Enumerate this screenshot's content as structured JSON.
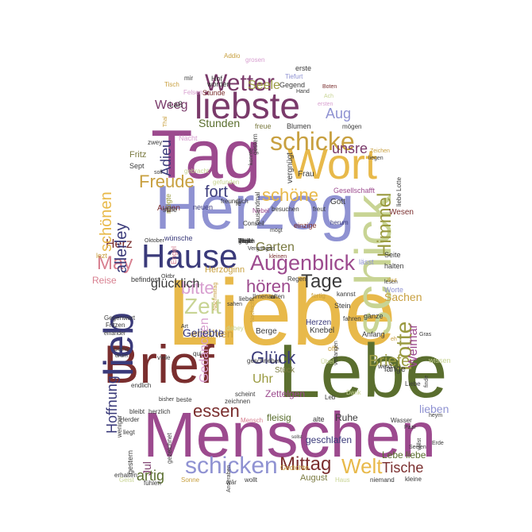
{
  "words": [
    {
      "text": "Liebe",
      "color": "#e8b94a",
      "orientation": "horizontal"
    },
    {
      "text": "Menschen",
      "color": "#9c4a8e",
      "orientation": "horizontal"
    },
    {
      "text": "Lebe",
      "color": "#5a6e2e",
      "orientation": "horizontal"
    },
    {
      "text": "Brief",
      "color": "#7a2e2e",
      "orientation": "horizontal"
    },
    {
      "text": "Herzog",
      "color": "#8f92d2",
      "orientation": "horizontal"
    },
    {
      "text": "Tag",
      "color": "#9c4a8e",
      "orientation": "horizontal"
    },
    {
      "text": "Wort",
      "color": "#e8b94a",
      "orientation": "horizontal"
    },
    {
      "text": "liebste",
      "color": "#7a3a6a",
      "orientation": "horizontal"
    },
    {
      "text": "Hause",
      "color": "#3a3a7a",
      "orientation": "horizontal"
    },
    {
      "text": "schick",
      "color": "#c8d494",
      "orientation": "vertical"
    },
    {
      "text": "lieb",
      "color": "#3a3a7a",
      "orientation": "vertical"
    },
    {
      "text": "schicke",
      "color": "#c8a040",
      "orientation": "horizontal"
    },
    {
      "text": "Wetter",
      "color": "#7a3a6a",
      "orientation": "horizontal"
    },
    {
      "text": "Augenblick",
      "color": "#9c4a8e",
      "orientation": "horizontal"
    },
    {
      "text": "schicken",
      "color": "#8f92d2",
      "orientation": "horizontal"
    },
    {
      "text": "Zeit",
      "color": "#c8d494",
      "orientation": "horizontal"
    },
    {
      "text": "Tage",
      "color": "#3a3a3a",
      "orientation": "horizontal"
    },
    {
      "text": "Lotte",
      "color": "#9a9a40",
      "orientation": "vertical"
    },
    {
      "text": "Welt",
      "color": "#e8b94a",
      "orientation": "horizontal"
    },
    {
      "text": "Glück",
      "color": "#3a3a7a",
      "orientation": "horizontal"
    },
    {
      "text": "essen",
      "color": "#7a2e2e",
      "orientation": "horizontal"
    },
    {
      "text": "Mittag",
      "color": "#7a2e2e",
      "orientation": "horizontal"
    },
    {
      "text": "bitte",
      "color": "#d8a0d0",
      "orientation": "horizontal"
    },
    {
      "text": "hören",
      "color": "#9c4a8e",
      "orientation": "horizontal"
    },
    {
      "text": "May",
      "color": "#d88090",
      "orientation": "horizontal"
    },
    {
      "text": "Freude",
      "color": "#c8a040",
      "orientation": "horizontal"
    },
    {
      "text": "schöne",
      "color": "#e8b94a",
      "orientation": "horizontal"
    },
    {
      "text": "fort",
      "color": "#3a3a7a",
      "orientation": "horizontal"
    },
    {
      "text": "Himmel",
      "color": "#9a9a40",
      "orientation": "vertical"
    },
    {
      "text": "unsre",
      "color": "#7a3a6a",
      "orientation": "horizontal"
    },
    {
      "text": "Aug",
      "color": "#8f92d2",
      "orientation": "horizontal"
    },
    {
      "text": "Seele",
      "color": "#9a9a40",
      "orientation": "horizontal"
    },
    {
      "text": "Weeg",
      "color": "#7a3a6a",
      "orientation": "horizontal"
    },
    {
      "text": "Stunden",
      "color": "#5a6e2e",
      "orientation": "horizontal"
    },
    {
      "text": "Adieu",
      "color": "#3a3a7a",
      "orientation": "vertical"
    },
    {
      "text": "Garten",
      "color": "#7a7a40",
      "orientation": "horizontal"
    },
    {
      "text": "Herz",
      "color": "#7a2e2e",
      "orientation": "horizontal"
    },
    {
      "text": "allerley",
      "color": "#3a3a7a",
      "orientation": "vertical"
    },
    {
      "text": "schönen",
      "color": "#e8b94a",
      "orientation": "vertical"
    },
    {
      "text": "Briefe",
      "color": "#9a9a40",
      "orientation": "horizontal"
    },
    {
      "text": "Weimar",
      "color": "#9c4a8e",
      "orientation": "vertical"
    },
    {
      "text": "Hoffnung",
      "color": "#3a3a7a",
      "orientation": "vertical"
    },
    {
      "text": "glücklich",
      "color": "#3a3a3a",
      "orientation": "horizontal"
    },
    {
      "text": "Uhr",
      "color": "#9a9a40",
      "orientation": "horizontal"
    },
    {
      "text": "Gedancken",
      "color": "#d8a0d0",
      "orientation": "vertical"
    },
    {
      "text": "artig",
      "color": "#5a6e2e",
      "orientation": "horizontal"
    },
    {
      "text": "Tische",
      "color": "#7a2e2e",
      "orientation": "horizontal"
    },
    {
      "text": "lieben",
      "color": "#8f92d2",
      "orientation": "horizontal"
    },
    {
      "text": "Jul",
      "color": "#7a3a6a",
      "orientation": "vertical"
    },
    {
      "text": "erzählen",
      "color": "#c8a040",
      "orientation": "horizontal"
    },
    {
      "text": "Sachen",
      "color": "#c8a040",
      "orientation": "horizontal"
    },
    {
      "text": "Reise",
      "color": "#d88090",
      "orientation": "horizontal"
    },
    {
      "text": "Herzoginn",
      "color": "#c8a040",
      "orientation": "horizontal"
    },
    {
      "text": "Geliebte",
      "color": "#3a3a7a",
      "orientation": "horizontal"
    },
    {
      "text": "Zettelgen",
      "color": "#9c4a8e",
      "orientation": "horizontal"
    },
    {
      "text": "fleisig",
      "color": "#5a6e2e",
      "orientation": "horizontal"
    },
    {
      "text": "geschlafen",
      "color": "#3a3a7a",
      "orientation": "horizontal"
    },
    {
      "text": "Ruhe",
      "color": "#3a3a3a",
      "orientation": "horizontal"
    },
    {
      "text": "Lebe liebe",
      "color": "#5a6e2e",
      "orientation": "horizontal"
    },
    {
      "text": "lange",
      "color": "#3a3a3a",
      "orientation": "horizontal"
    },
    {
      "text": "August",
      "color": "#7a7a40",
      "orientation": "horizontal"
    },
    {
      "text": "Herzen",
      "color": "#3a3a7a",
      "orientation": "horizontal"
    },
    {
      "text": "Knebel",
      "color": "#3a3a3a",
      "orientation": "horizontal"
    },
    {
      "text": "Berge",
      "color": "#3a3a3a",
      "orientation": "horizontal"
    },
    {
      "text": "Stück",
      "color": "#7a7a40",
      "orientation": "horizontal"
    },
    {
      "text": "Augen",
      "color": "#7a2e2e",
      "orientation": "horizontal"
    },
    {
      "text": "Fritz",
      "color": "#7a7a40",
      "orientation": "horizontal"
    },
    {
      "text": "Sept",
      "color": "#3a3a3a",
      "orientation": "horizontal"
    },
    {
      "text": "Nacht",
      "color": "#d8a0d0",
      "orientation": "horizontal"
    },
    {
      "text": "vergnügt",
      "color": "#3a3a3a",
      "orientation": "vertical"
    },
    {
      "text": "Gesellschafft",
      "color": "#9c4a8e",
      "orientation": "horizontal"
    },
    {
      "text": "einzige",
      "color": "#7a2e2e",
      "orientation": "horizontal"
    },
    {
      "text": "Gott",
      "color": "#3a3a3a",
      "orientation": "horizontal"
    },
    {
      "text": "freue",
      "color": "#7a7a40",
      "orientation": "horizontal"
    },
    {
      "text": "Blumen",
      "color": "#3a3a3a",
      "orientation": "horizontal"
    },
    {
      "text": "Laß",
      "color": "#3a3a3a",
      "orientation": "horizontal"
    },
    {
      "text": "Stunde",
      "color": "#7a2e2e",
      "orientation": "horizontal"
    },
    {
      "text": "Gegend",
      "color": "#3a3a3a",
      "orientation": "horizontal"
    },
    {
      "text": "erste",
      "color": "#3a3a3a",
      "orientation": "horizontal"
    },
    {
      "text": "Hof",
      "color": "#3a3a3a",
      "orientation": "horizontal"
    },
    {
      "text": "Tisch",
      "color": "#c8a040",
      "orientation": "horizontal"
    },
    {
      "text": "worden",
      "color": "#3a3a3a",
      "orientation": "horizontal"
    },
    {
      "text": "Addio",
      "color": "#c8a040",
      "orientation": "horizontal"
    },
    {
      "text": "grosen",
      "color": "#d8a0d0",
      "orientation": "horizontal"
    },
    {
      "text": "Tiefurt",
      "color": "#8f92d2",
      "orientation": "horizontal"
    },
    {
      "text": "mir",
      "color": "#3a3a3a",
      "orientation": "horizontal"
    },
    {
      "text": "Thal",
      "color": "#c8a040",
      "orientation": "vertical"
    },
    {
      "text": "Felsen",
      "color": "#d8a0d0",
      "orientation": "horizontal"
    },
    {
      "text": "Ach",
      "color": "#c8d494",
      "orientation": "horizontal"
    },
    {
      "text": "Boten",
      "color": "#7a2e2e",
      "orientation": "horizontal"
    },
    {
      "text": "ersten",
      "color": "#d8a0d0",
      "orientation": "horizontal"
    },
    {
      "text": "Hand",
      "color": "#3a3a3a",
      "orientation": "horizontal"
    },
    {
      "text": "mögen",
      "color": "#3a3a3a",
      "orientation": "horizontal"
    },
    {
      "text": "Zeichen",
      "color": "#c8a040",
      "orientation": "horizontal"
    },
    {
      "text": "liegen",
      "color": "#3a3a3a",
      "orientation": "horizontal"
    },
    {
      "text": "gefunden",
      "color": "#c8d494",
      "orientation": "horizontal"
    },
    {
      "text": "Frau",
      "color": "#3a3a3a",
      "orientation": "horizontal"
    },
    {
      "text": "mögte",
      "color": "#9a9a40",
      "orientation": "vertical"
    },
    {
      "text": "stille",
      "color": "#3a3a3a",
      "orientation": "horizontal"
    },
    {
      "text": "neuen",
      "color": "#3a3a7a",
      "orientation": "horizontal"
    },
    {
      "text": "le",
      "color": "#3a3a3a",
      "orientation": "horizontal"
    },
    {
      "text": "Nebel",
      "color": "#9c4a8e",
      "orientation": "horizontal"
    },
    {
      "text": "besuchen",
      "color": "#3a3a3a",
      "orientation": "horizontal"
    },
    {
      "text": "freut",
      "color": "#3a3a3a",
      "orientation": "horizontal"
    },
    {
      "text": "Conseil",
      "color": "#3a3a3a",
      "orientation": "horizontal"
    },
    {
      "text": "herum",
      "color": "#3a3a7a",
      "orientation": "horizontal"
    },
    {
      "text": "mögt",
      "color": "#3a3a3a",
      "orientation": "horizontal"
    },
    {
      "text": "lässt",
      "color": "#8f92d2",
      "orientation": "horizontal"
    },
    {
      "text": "Wesen",
      "color": "#7a2e2e",
      "orientation": "horizontal"
    },
    {
      "text": "liebe Lotte",
      "color": "#3a3a3a",
      "orientation": "vertical"
    },
    {
      "text": "Engel",
      "color": "#d88090",
      "orientation": "vertical"
    },
    {
      "text": "wünsche",
      "color": "#3a3a7a",
      "orientation": "horizontal"
    },
    {
      "text": "lezt",
      "color": "#c8a040",
      "orientation": "horizontal"
    },
    {
      "text": "kleinen",
      "color": "#7a2e2e",
      "orientation": "horizontal"
    },
    {
      "text": "befindest",
      "color": "#3a3a3a",
      "orientation": "horizontal"
    },
    {
      "text": "Regen",
      "color": "#3a3a3a",
      "orientation": "horizontal"
    },
    {
      "text": "Seite",
      "color": "#3a3a3a",
      "orientation": "horizontal"
    },
    {
      "text": "halten",
      "color": "#3a3a3a",
      "orientation": "horizontal"
    },
    {
      "text": "Stein",
      "color": "#3a3a3a",
      "orientation": "horizontal"
    },
    {
      "text": "kannst",
      "color": "#3a3a3a",
      "orientation": "horizontal"
    },
    {
      "text": "fertig",
      "color": "#c8a040",
      "orientation": "horizontal"
    },
    {
      "text": "Ilmenau",
      "color": "#3a3a3a",
      "orientation": "horizontal"
    },
    {
      "text": "alten",
      "color": "#3a3a3a",
      "orientation": "horizontal"
    },
    {
      "text": "Worte",
      "color": "#8f92d2",
      "orientation": "horizontal"
    },
    {
      "text": "lesen",
      "color": "#3a3a3a",
      "orientation": "horizontal"
    },
    {
      "text": "ganze",
      "color": "#3a3a3a",
      "orientation": "horizontal"
    },
    {
      "text": "Anfang",
      "color": "#3a3a3a",
      "orientation": "horizontal"
    },
    {
      "text": "offt",
      "color": "#c8a040",
      "orientation": "horizontal"
    },
    {
      "text": "werd",
      "color": "#3a3a3a",
      "orientation": "horizontal"
    },
    {
      "text": "wissen",
      "color": "#c8d494",
      "orientation": "horizontal"
    },
    {
      "text": "Dank",
      "color": "#c8d494",
      "orientation": "horizontal"
    },
    {
      "text": "Leb",
      "color": "#3a3a3a",
      "orientation": "horizontal"
    },
    {
      "text": "Wasser",
      "color": "#3a3a3a",
      "orientation": "horizontal"
    },
    {
      "text": "Paar",
      "color": "#3a3a3a",
      "orientation": "horizontal"
    },
    {
      "text": "alte",
      "color": "#3a3a3a",
      "orientation": "horizontal"
    },
    {
      "text": "Gedichte",
      "color": "#c8a040",
      "orientation": "horizontal"
    },
    {
      "text": "wollt",
      "color": "#3a3a3a",
      "orientation": "horizontal"
    },
    {
      "text": "Haus",
      "color": "#c8d494",
      "orientation": "horizontal"
    },
    {
      "text": "niemand",
      "color": "#3a3a3a",
      "orientation": "horizontal"
    },
    {
      "text": "kleine",
      "color": "#3a3a3a",
      "orientation": "horizontal"
    },
    {
      "text": "fühlen",
      "color": "#3a3a3a",
      "orientation": "horizontal"
    },
    {
      "text": "wär",
      "color": "#3a3a3a",
      "orientation": "horizontal"
    },
    {
      "text": "Sonne",
      "color": "#c8a040",
      "orientation": "horizontal"
    },
    {
      "text": "Geist",
      "color": "#c8d494",
      "orientation": "horizontal"
    },
    {
      "text": "erhalten",
      "color": "#3a3a3a",
      "orientation": "horizontal"
    },
    {
      "text": "liegt",
      "color": "#3a3a3a",
      "orientation": "horizontal"
    },
    {
      "text": "Herder",
      "color": "#3a3a3a",
      "orientation": "horizontal"
    },
    {
      "text": "bleibt",
      "color": "#3a3a3a",
      "orientation": "horizontal"
    },
    {
      "text": "herzlich",
      "color": "#3a3a3a",
      "orientation": "horizontal"
    },
    {
      "text": "beste",
      "color": "#3a3a3a",
      "orientation": "horizontal"
    },
    {
      "text": "zeichnen",
      "color": "#3a3a3a",
      "orientation": "horizontal"
    },
    {
      "text": "scheint",
      "color": "#3a3a3a",
      "orientation": "horizontal"
    },
    {
      "text": "Mensch",
      "color": "#d88090",
      "orientation": "horizontal"
    },
    {
      "text": "endlich",
      "color": "#3a3a3a",
      "orientation": "horizontal"
    },
    {
      "text": "viele",
      "color": "#3a3a3a",
      "orientation": "horizontal"
    },
    {
      "text": "geschrieben",
      "color": "#3a3a3a",
      "orientation": "horizontal"
    },
    {
      "text": "Gotha",
      "color": "#3a3a3a",
      "orientation": "horizontal"
    },
    {
      "text": "Fritzen",
      "color": "#3a3a3a",
      "orientation": "horizontal"
    },
    {
      "text": "Gegenwart",
      "color": "#3a3a3a",
      "orientation": "horizontal"
    },
    {
      "text": "einander",
      "color": "#3a3a3a",
      "orientation": "horizontal"
    },
    {
      "text": "Art",
      "color": "#3a3a3a",
      "orientation": "horizontal"
    },
    {
      "text": "lieber",
      "color": "#3a3a3a",
      "orientation": "horizontal"
    },
    {
      "text": "dabey",
      "color": "#c8d494",
      "orientation": "horizontal"
    },
    {
      "text": "sahen",
      "color": "#3a3a3a",
      "orientation": "horizontal"
    },
    {
      "text": "Oktbr",
      "color": "#3a3a3a",
      "orientation": "horizontal"
    },
    {
      "text": "Nachricht",
      "color": "#c8a040",
      "orientation": "vertical"
    },
    {
      "text": "Nachmittag",
      "color": "#c8a040",
      "orientation": "vertical"
    },
    {
      "text": "Vergnügen",
      "color": "#3a3a3a",
      "orientation": "horizontal"
    },
    {
      "text": "Oktober",
      "color": "#3a3a3a",
      "orientation": "horizontal"
    },
    {
      "text": "freundlich",
      "color": "#3a3a3a",
      "orientation": "horizontal"
    },
    {
      "text": "gebracht",
      "color": "#c8d494",
      "orientation": "horizontal"
    },
    {
      "text": "konnte",
      "color": "#3a3a3a",
      "orientation": "vertical"
    },
    {
      "text": "gestern",
      "color": "#3a3a3a",
      "orientation": "vertical"
    },
    {
      "text": "tausendmal",
      "color": "#3a3a3a",
      "orientation": "vertical"
    },
    {
      "text": "zwey",
      "color": "#3a3a3a",
      "orientation": "horizontal"
    },
    {
      "text": "soll",
      "color": "#3a3a3a",
      "orientation": "horizontal"
    },
    {
      "text": "qui",
      "color": "#3a3a3a",
      "orientation": "horizontal"
    },
    {
      "text": "eh",
      "color": "#c8a040",
      "orientation": "horizontal"
    },
    {
      "text": "fahren",
      "color": "#3a3a3a",
      "orientation": "horizontal"
    },
    {
      "text": "Liebe",
      "color": "#3a3a3a",
      "orientation": "horizontal"
    },
    {
      "text": "finde",
      "color": "#3a3a3a",
      "orientation": "vertical"
    },
    {
      "text": "drum",
      "color": "#3a3a3a",
      "orientation": "horizontal"
    },
    {
      "text": "weniger",
      "color": "#3a3a3a",
      "orientation": "vertical"
    },
    {
      "text": "gestern",
      "color": "#3a3a3a",
      "orientation": "vertical"
    },
    {
      "text": "Anderaben",
      "color": "#3a3a3a",
      "orientation": "vertical"
    },
    {
      "text": "gezeichnet",
      "color": "#3a3a3a",
      "orientation": "vertical"
    },
    {
      "text": "sollst",
      "color": "#3a3a3a",
      "orientation": "horizontal"
    },
    {
      "text": "Übel",
      "color": "#c8d494",
      "orientation": "horizontal"
    },
    {
      "text": "willst",
      "color": "#3a3a3a",
      "orientation": "vertical"
    },
    {
      "text": "thut",
      "color": "#c8a040",
      "orientation": "horizontal"
    },
    {
      "text": "Seelen",
      "color": "#3a3a3a",
      "orientation": "horizontal"
    },
    {
      "text": "heym",
      "color": "#3a3a3a",
      "orientation": "horizontal"
    },
    {
      "text": "Gras",
      "color": "#3a3a3a",
      "orientation": "horizontal"
    },
    {
      "text": "Erde",
      "color": "#3a3a3a",
      "orientation": "horizontal"
    },
    {
      "text": "bisher",
      "color": "#3a3a3a",
      "orientation": "horizontal"
    },
    {
      "text": "verlangen",
      "color": "#3a3a3a",
      "orientation": "vertical"
    },
    {
      "text": "Welt",
      "color": "#3a3a3a",
      "orientation": "horizontal"
    },
    {
      "text": "gleich",
      "color": "#3a3a3a",
      "orientation": "horizontal"
    },
    {
      "text": "Weile",
      "color": "#3a3a3a",
      "orientation": "horizontal"
    },
    {
      "text": "beide",
      "color": "#3a3a3a",
      "orientation": "horizontal"
    },
    {
      "text": "Tage",
      "color": "#3a3a3a",
      "orientation": "horizontal"
    }
  ]
}
